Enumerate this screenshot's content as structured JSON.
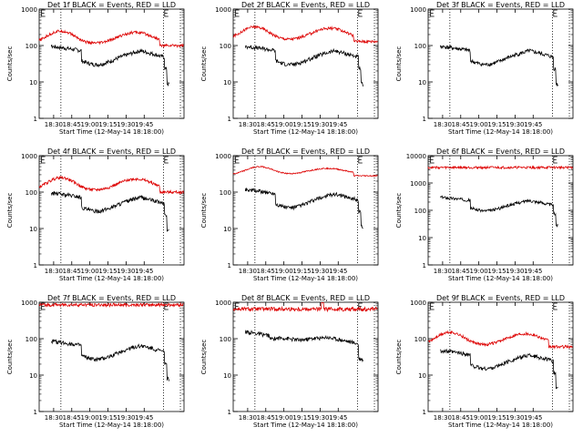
{
  "chart_data": [
    {
      "type": "line",
      "title": "Det 1f BLACK = Events, RED = LLD",
      "xlabel": "Start Time (12-May-14 18:18:00)",
      "ylabel": "Counts/sec",
      "yscale": "log",
      "ylim": [
        1,
        1000
      ],
      "xticks": [
        "18:30",
        "18:45",
        "19:00",
        "19:15",
        "19:30",
        "19:45"
      ],
      "yticks": [
        "1",
        "10",
        "100",
        "1000"
      ],
      "e_markers": true,
      "series": [
        {
          "color": "#000000",
          "shape": "events",
          "level": 1.0
        },
        {
          "color": "#dd0000",
          "shape": "lld",
          "level": 1.0
        }
      ]
    },
    {
      "type": "line",
      "title": "Det 2f BLACK = Events, RED = LLD",
      "xlabel": "Start Time (12-May-14 18:18:00)",
      "ylabel": "Counts/sec",
      "yscale": "log",
      "ylim": [
        1,
        1000
      ],
      "xticks": [
        "18:30",
        "18:45",
        "19:00",
        "19:15",
        "19:30",
        "19:45"
      ],
      "yticks": [
        "1",
        "10",
        "100",
        "1000"
      ],
      "e_markers": true,
      "series": [
        {
          "color": "#000000",
          "shape": "events",
          "level": 1.0
        },
        {
          "color": "#dd0000",
          "shape": "lld",
          "level": 1.3
        }
      ]
    },
    {
      "type": "line",
      "title": "Det 3f BLACK = Events, RED = LLD",
      "xlabel": "Start Time (12-May-14 18:18:00)",
      "ylabel": "Counts/sec",
      "yscale": "log",
      "ylim": [
        1,
        1000
      ],
      "xticks": [
        "18:30",
        "18:45",
        "19:00",
        "19:15",
        "19:30",
        "19:45"
      ],
      "yticks": [
        "1",
        "10",
        "100",
        "1000"
      ],
      "e_markers": true,
      "series": [
        {
          "color": "#000000",
          "shape": "events",
          "level": 1.0
        }
      ]
    },
    {
      "type": "line",
      "title": "Det 4f BLACK = Events, RED = LLD",
      "xlabel": "Start Time (12-May-14 18:18:00)",
      "ylabel": "Counts/sec",
      "yscale": "log",
      "ylim": [
        1,
        1000
      ],
      "xticks": [
        "18:30",
        "18:45",
        "19:00",
        "19:15",
        "19:30",
        "19:45"
      ],
      "yticks": [
        "1",
        "10",
        "100",
        "1000"
      ],
      "e_markers": true,
      "series": [
        {
          "color": "#000000",
          "shape": "events",
          "level": 1.0
        },
        {
          "color": "#dd0000",
          "shape": "lld",
          "level": 1.0
        }
      ]
    },
    {
      "type": "line",
      "title": "Det 5f BLACK = Events, RED = LLD",
      "xlabel": "Start Time (12-May-14 18:18:00)",
      "ylabel": "Counts/sec",
      "yscale": "log",
      "ylim": [
        1,
        1000
      ],
      "xticks": [
        "18:30",
        "18:45",
        "19:00",
        "19:15",
        "19:30",
        "19:45"
      ],
      "yticks": [
        "1",
        "10",
        "100",
        "1000"
      ],
      "e_markers": true,
      "series": [
        {
          "color": "#000000",
          "shape": "events",
          "level": 1.25
        },
        {
          "color": "#dd0000",
          "shape": "lld5",
          "level": 1.0
        }
      ]
    },
    {
      "type": "line",
      "title": "Det 6f BLACK = Events, RED = LLD",
      "xlabel": "Start Time (12-May-14 18:18:00)",
      "ylabel": "Counts/sec",
      "yscale": "log",
      "ylim": [
        1,
        10000
      ],
      "xticks": [
        "18:30",
        "18:45",
        "19:00",
        "19:15",
        "19:30",
        "19:45"
      ],
      "yticks": [
        "1",
        "10",
        "100",
        "1000",
        "10000"
      ],
      "e_markers": true,
      "series": [
        {
          "color": "#000000",
          "shape": "events",
          "level": 3.2
        },
        {
          "color": "#dd0000",
          "shape": "flat",
          "level": 3700
        }
      ]
    },
    {
      "type": "line",
      "title": "Det 7f BLACK = Events, RED = LLD",
      "xlabel": "Start Time (12-May-14 18:18:00)",
      "ylabel": "Counts/sec",
      "yscale": "log",
      "ylim": [
        1,
        1000
      ],
      "xticks": [
        "18:30",
        "18:45",
        "19:00",
        "19:15",
        "19:30",
        "19:45"
      ],
      "yticks": [
        "1",
        "10",
        "100",
        "1000"
      ],
      "e_markers": true,
      "series": [
        {
          "color": "#000000",
          "shape": "events",
          "level": 0.9
        },
        {
          "color": "#dd0000",
          "shape": "flat",
          "level": 850
        }
      ]
    },
    {
      "type": "line",
      "title": "Det 8f BLACK = Events, RED = LLD",
      "xlabel": "Start Time (12-May-14 18:18:00)",
      "ylabel": "Counts/sec",
      "yscale": "log",
      "ylim": [
        1,
        1000
      ],
      "xticks": [
        "18:30",
        "18:45",
        "19:00",
        "19:15",
        "19:30",
        "19:45"
      ],
      "yticks": [
        "1",
        "10",
        "100",
        "1000"
      ],
      "e_markers": true,
      "series": [
        {
          "color": "#000000",
          "shape": "events8",
          "level": 1.4
        },
        {
          "color": "#dd0000",
          "shape": "flat8",
          "level": 650
        }
      ]
    },
    {
      "type": "line",
      "title": "Det 9f BLACK = Events, RED = LLD",
      "xlabel": "Start Time (12-May-14 18:18:00)",
      "ylabel": "Counts/sec",
      "yscale": "log",
      "ylim": [
        1,
        1000
      ],
      "xticks": [
        "18:30",
        "18:45",
        "19:00",
        "19:15",
        "19:30",
        "19:45"
      ],
      "yticks": [
        "1",
        "10",
        "100",
        "1000"
      ],
      "e_markers": true,
      "series": [
        {
          "color": "#000000",
          "shape": "events",
          "level": 0.5
        },
        {
          "color": "#dd0000",
          "shape": "lld",
          "level": 0.6
        }
      ]
    }
  ]
}
